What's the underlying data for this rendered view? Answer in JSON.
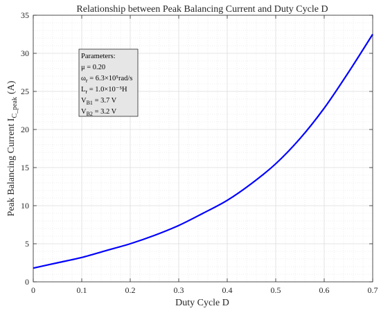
{
  "chart_data": {
    "type": "line",
    "title": "Relationship between Peak Balancing Current and Duty Cycle D",
    "xlabel": "Duty Cycle D",
    "ylabel_main": "Peak Balancing Current I",
    "ylabel_sub": "C_peak",
    "ylabel_unit": "(A)",
    "xlim": [
      0,
      0.7
    ],
    "ylim": [
      0,
      35
    ],
    "x_ticks": [
      0,
      0.1,
      0.2,
      0.3,
      0.4,
      0.5,
      0.6,
      0.7
    ],
    "x_tick_labels": [
      "0",
      "0.1",
      "0.2",
      "0.3",
      "0.4",
      "0.5",
      "0.6",
      "0.7"
    ],
    "y_ticks": [
      0,
      5,
      10,
      15,
      20,
      25,
      30,
      35
    ],
    "y_tick_labels": [
      "0",
      "5",
      "10",
      "15",
      "20",
      "25",
      "30",
      "35"
    ],
    "grid": true,
    "series": [
      {
        "color": "#0000ff",
        "x": [
          0,
          0.05,
          0.1,
          0.15,
          0.2,
          0.25,
          0.3,
          0.35,
          0.4,
          0.45,
          0.5,
          0.55,
          0.6,
          0.65,
          0.7
        ],
        "y": [
          1.8,
          2.5,
          3.2,
          4.1,
          5.0,
          6.1,
          7.4,
          9.0,
          10.7,
          12.9,
          15.5,
          18.8,
          22.8,
          27.5,
          32.5
        ]
      }
    ],
    "annotation": {
      "position": "top-left",
      "lines": [
        {
          "label": "Parameters:",
          "sub": "",
          "rest": ""
        },
        {
          "label": "μ = 0.20",
          "sub": "",
          "rest": ""
        },
        {
          "label": "ω",
          "sub": "r",
          "rest": " = 6.3×10⁵rad/s"
        },
        {
          "label": "L",
          "sub": "r",
          "rest": "  = 1.0×10⁻⁵H"
        },
        {
          "label": "V",
          "sub": "B1",
          "rest": " = 3.7 V"
        },
        {
          "label": "V",
          "sub": "B2",
          "rest": " = 3.2 V"
        }
      ]
    }
  }
}
